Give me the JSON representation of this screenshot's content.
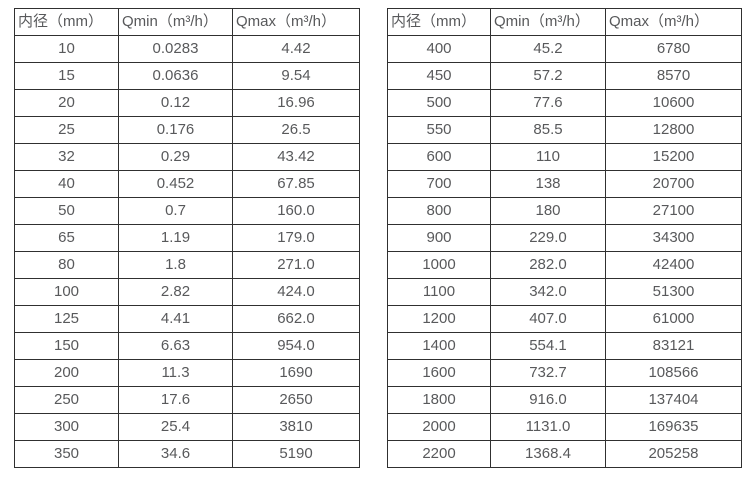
{
  "colors": {
    "background": "#ffffff",
    "border": "#303030",
    "text": "#58595b"
  },
  "tables": [
    {
      "name": "flow-spec-table-small-diameters",
      "headers": [
        "内径（mm）",
        "Qmin（m³/h）",
        "Qmax（m³/h）"
      ],
      "rows": [
        [
          "10",
          "0.0283",
          "4.42"
        ],
        [
          "15",
          "0.0636",
          "9.54"
        ],
        [
          "20",
          "0.12",
          "16.96"
        ],
        [
          "25",
          "0.176",
          "26.5"
        ],
        [
          "32",
          "0.29",
          "43.42"
        ],
        [
          "40",
          "0.452",
          "67.85"
        ],
        [
          "50",
          "0.7",
          "160.0"
        ],
        [
          "65",
          "1.19",
          "179.0"
        ],
        [
          "80",
          "1.8",
          "271.0"
        ],
        [
          "100",
          "2.82",
          "424.0"
        ],
        [
          "125",
          "4.41",
          "662.0"
        ],
        [
          "150",
          "6.63",
          "954.0"
        ],
        [
          "200",
          "11.3",
          "1690"
        ],
        [
          "250",
          "17.6",
          "2650"
        ],
        [
          "300",
          "25.4",
          "3810"
        ],
        [
          "350",
          "34.6",
          "5190"
        ]
      ]
    },
    {
      "name": "flow-spec-table-large-diameters",
      "headers": [
        "内径（mm）",
        "Qmin（m³/h）",
        "Qmax（m³/h）"
      ],
      "rows": [
        [
          "400",
          "45.2",
          "6780"
        ],
        [
          "450",
          "57.2",
          "8570"
        ],
        [
          "500",
          "77.6",
          "10600"
        ],
        [
          "550",
          "85.5",
          "12800"
        ],
        [
          "600",
          "110",
          "15200"
        ],
        [
          "700",
          "138",
          "20700"
        ],
        [
          "800",
          "180",
          "27100"
        ],
        [
          "900",
          "229.0",
          "34300"
        ],
        [
          "1000",
          "282.0",
          "42400"
        ],
        [
          "1100",
          "342.0",
          "51300"
        ],
        [
          "1200",
          "407.0",
          "61000"
        ],
        [
          "1400",
          "554.1",
          "83121"
        ],
        [
          "1600",
          "732.7",
          "108566"
        ],
        [
          "1800",
          "916.0",
          "137404"
        ],
        [
          "2000",
          "1131.0",
          "169635"
        ],
        [
          "2200",
          "1368.4",
          "205258"
        ]
      ]
    }
  ]
}
